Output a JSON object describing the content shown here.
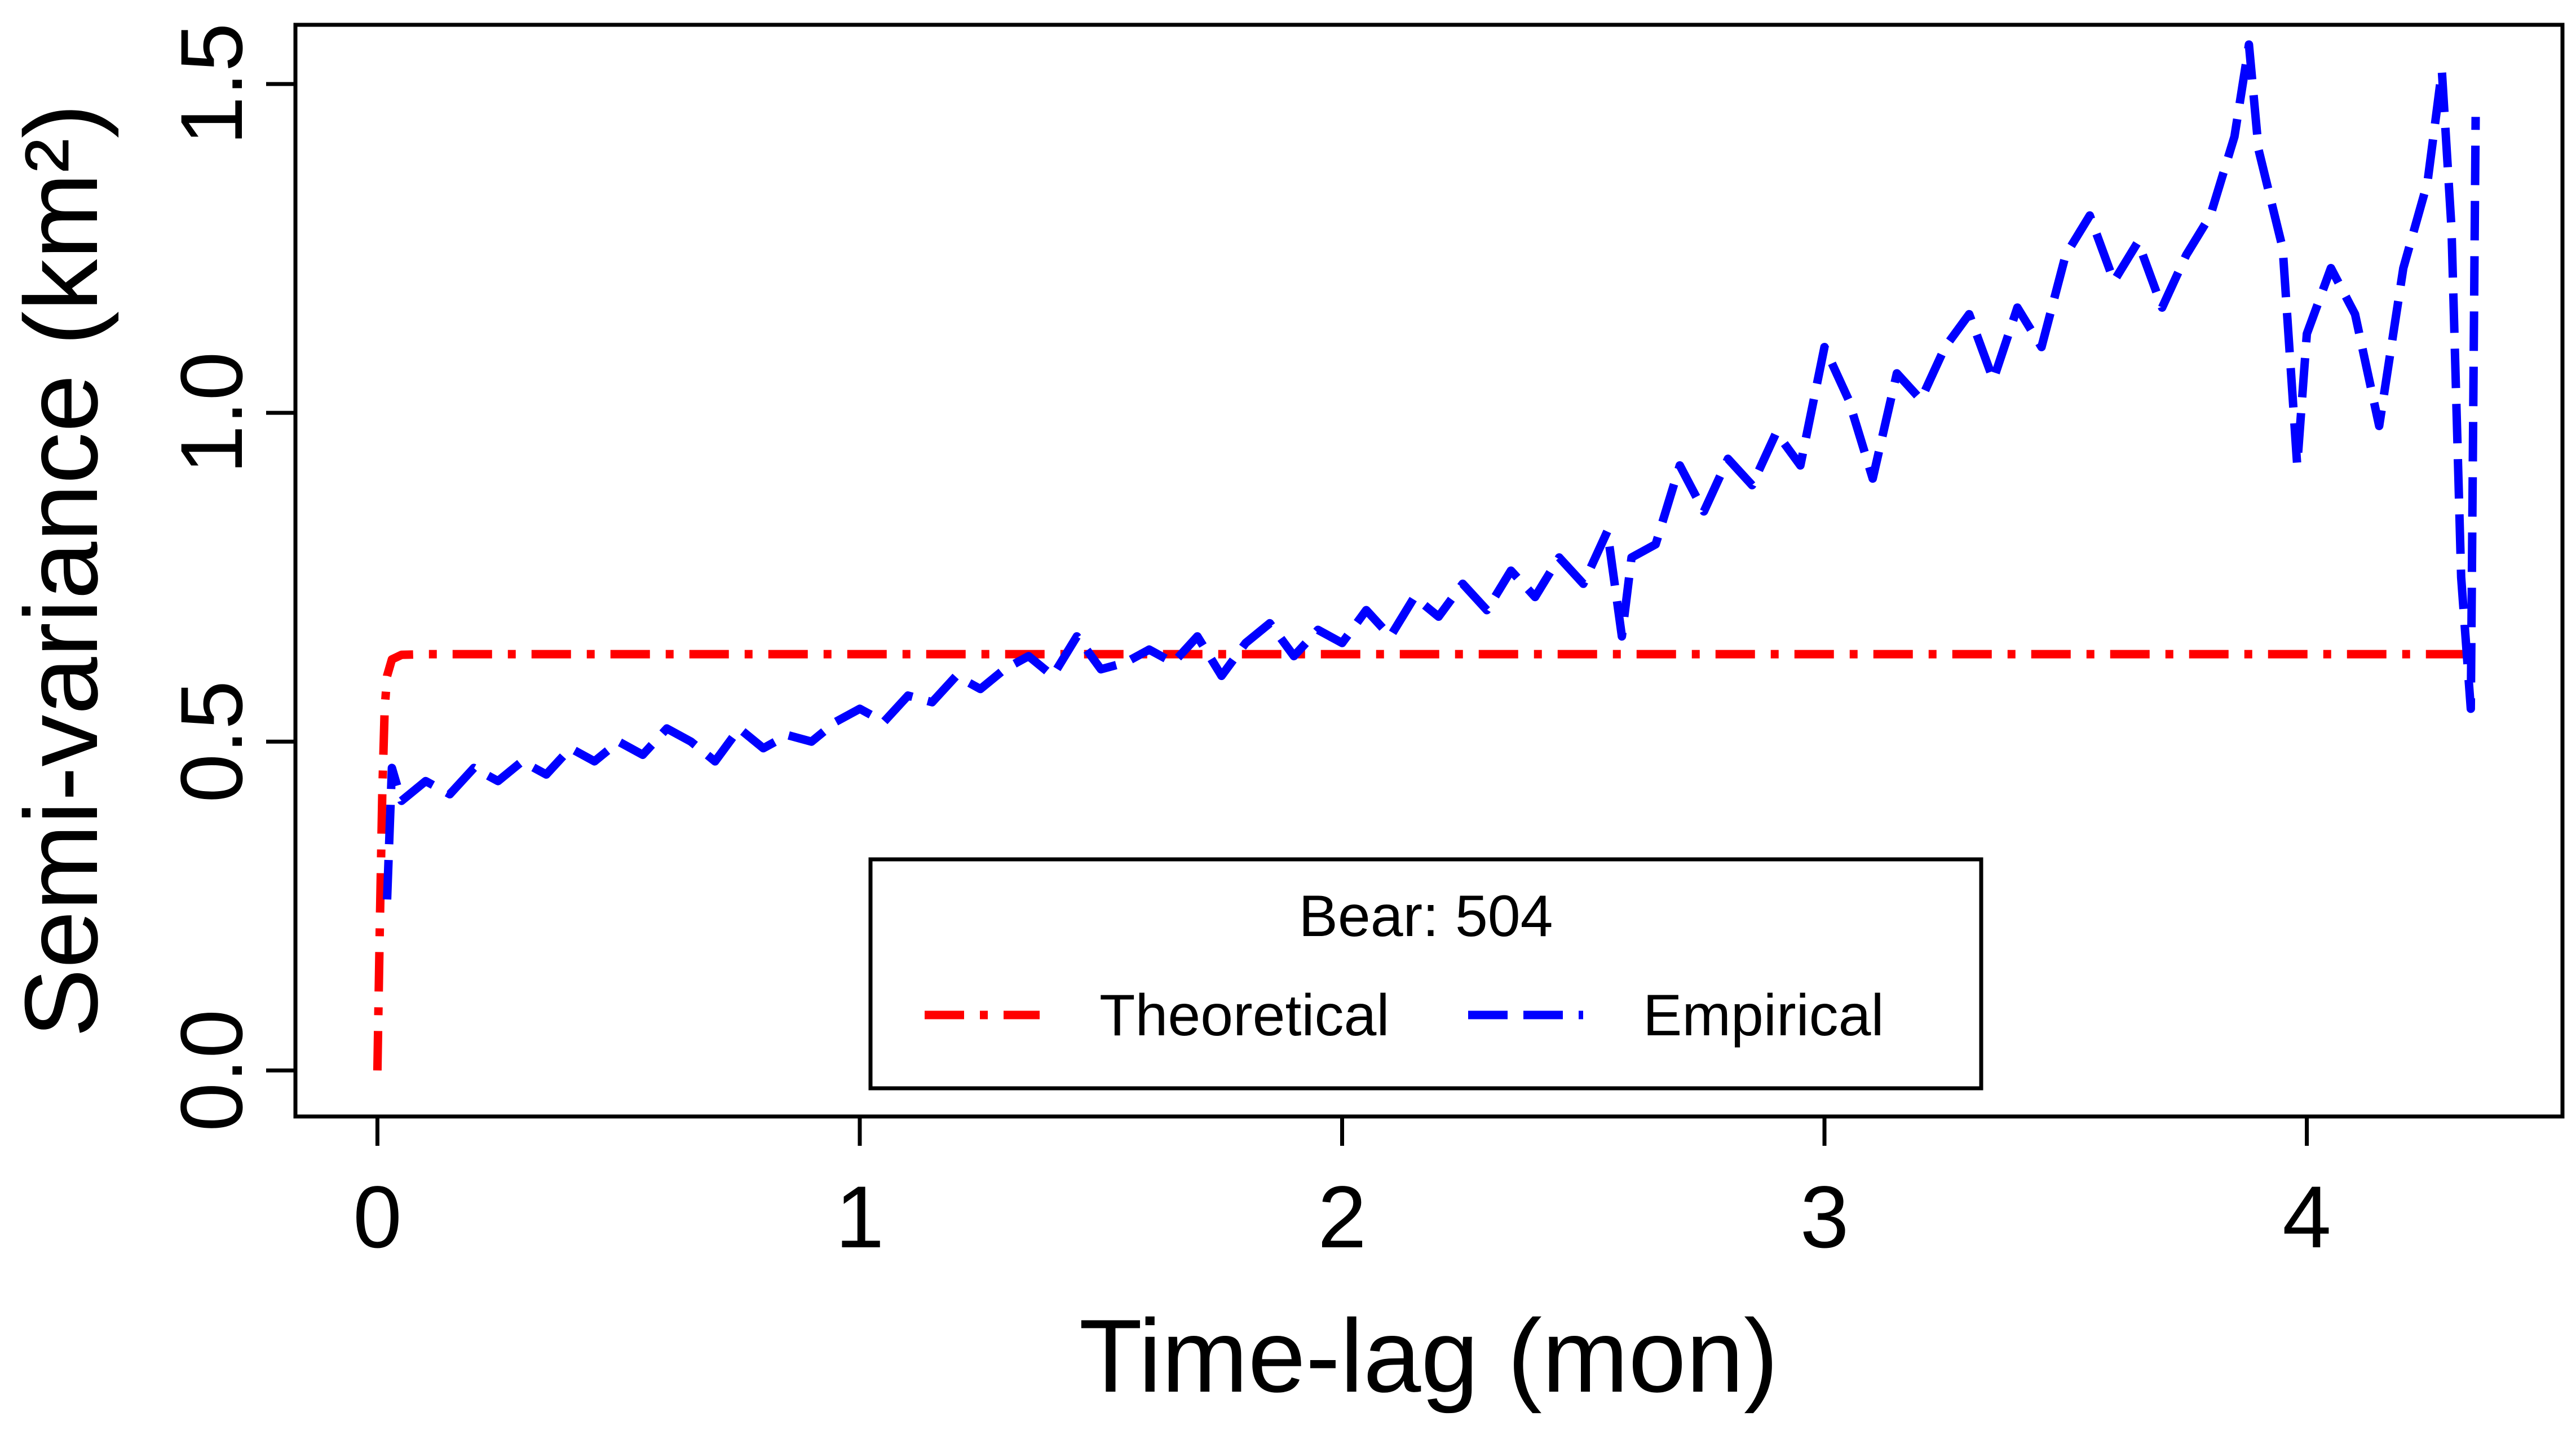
{
  "chart_data": {
    "type": "line",
    "xlabel": "Time-lag (mon)",
    "ylabel": "Semi-variance (km²)",
    "xlim": [
      -0.17,
      4.53
    ],
    "ylim": [
      -0.07,
      1.59
    ],
    "x_ticks": [
      0,
      1,
      2,
      3,
      4
    ],
    "x_tick_labels": [
      "0",
      "1",
      "2",
      "3",
      "4"
    ],
    "y_ticks": [
      0.0,
      0.5,
      1.0,
      1.5
    ],
    "y_tick_labels": [
      "0.0",
      "0.5",
      "1.0",
      "1.5"
    ],
    "grid": false,
    "legend": {
      "title": "Bear: 504",
      "placement": "bottom-center",
      "entries": [
        "Theoretical",
        "Empirical"
      ]
    },
    "series": [
      {
        "name": "Theoretical",
        "color": "#ff0000",
        "style": "dash-dot",
        "x": [
          0.0,
          0.005,
          0.01,
          0.015,
          0.02,
          0.03,
          0.05,
          0.1,
          0.5,
          1.0,
          1.5,
          2.0,
          2.5,
          3.0,
          3.5,
          4.0,
          4.35
        ],
        "y": [
          0.0,
          0.22,
          0.42,
          0.55,
          0.6,
          0.625,
          0.632,
          0.633,
          0.633,
          0.633,
          0.633,
          0.633,
          0.633,
          0.633,
          0.633,
          0.633,
          0.633
        ]
      },
      {
        "name": "Empirical",
        "color": "#0000ff",
        "style": "dashed",
        "x": [
          0.02,
          0.03,
          0.05,
          0.1,
          0.15,
          0.2,
          0.25,
          0.3,
          0.35,
          0.4,
          0.45,
          0.5,
          0.55,
          0.6,
          0.65,
          0.7,
          0.75,
          0.8,
          0.85,
          0.9,
          0.95,
          1.0,
          1.05,
          1.1,
          1.15,
          1.2,
          1.25,
          1.3,
          1.35,
          1.4,
          1.45,
          1.5,
          1.55,
          1.6,
          1.65,
          1.7,
          1.75,
          1.8,
          1.85,
          1.9,
          1.95,
          2.0,
          2.05,
          2.1,
          2.15,
          2.2,
          2.25,
          2.3,
          2.35,
          2.4,
          2.45,
          2.5,
          2.55,
          2.58,
          2.6,
          2.65,
          2.7,
          2.75,
          2.8,
          2.85,
          2.9,
          2.95,
          3.0,
          3.05,
          3.1,
          3.15,
          3.2,
          3.25,
          3.3,
          3.35,
          3.4,
          3.45,
          3.5,
          3.55,
          3.6,
          3.65,
          3.7,
          3.75,
          3.8,
          3.85,
          3.88,
          3.9,
          3.95,
          3.98,
          4.0,
          4.05,
          4.1,
          4.15,
          4.2,
          4.25,
          4.28,
          4.3,
          4.32,
          4.34,
          4.35
        ],
        "y": [
          0.26,
          0.46,
          0.41,
          0.44,
          0.42,
          0.46,
          0.44,
          0.47,
          0.45,
          0.49,
          0.47,
          0.5,
          0.48,
          0.52,
          0.5,
          0.47,
          0.52,
          0.49,
          0.51,
          0.5,
          0.53,
          0.55,
          0.53,
          0.57,
          0.56,
          0.6,
          0.58,
          0.61,
          0.63,
          0.6,
          0.66,
          0.61,
          0.62,
          0.64,
          0.62,
          0.66,
          0.6,
          0.65,
          0.68,
          0.63,
          0.67,
          0.65,
          0.7,
          0.66,
          0.72,
          0.69,
          0.74,
          0.7,
          0.76,
          0.72,
          0.78,
          0.74,
          0.82,
          0.66,
          0.78,
          0.8,
          0.92,
          0.85,
          0.93,
          0.89,
          0.97,
          0.92,
          1.1,
          1.02,
          0.9,
          1.06,
          1.02,
          1.1,
          1.15,
          1.05,
          1.16,
          1.1,
          1.24,
          1.3,
          1.2,
          1.26,
          1.16,
          1.24,
          1.3,
          1.42,
          1.56,
          1.4,
          1.25,
          0.92,
          1.12,
          1.22,
          1.15,
          0.98,
          1.22,
          1.35,
          1.52,
          1.28,
          0.75,
          0.55,
          1.45
        ]
      }
    ]
  }
}
